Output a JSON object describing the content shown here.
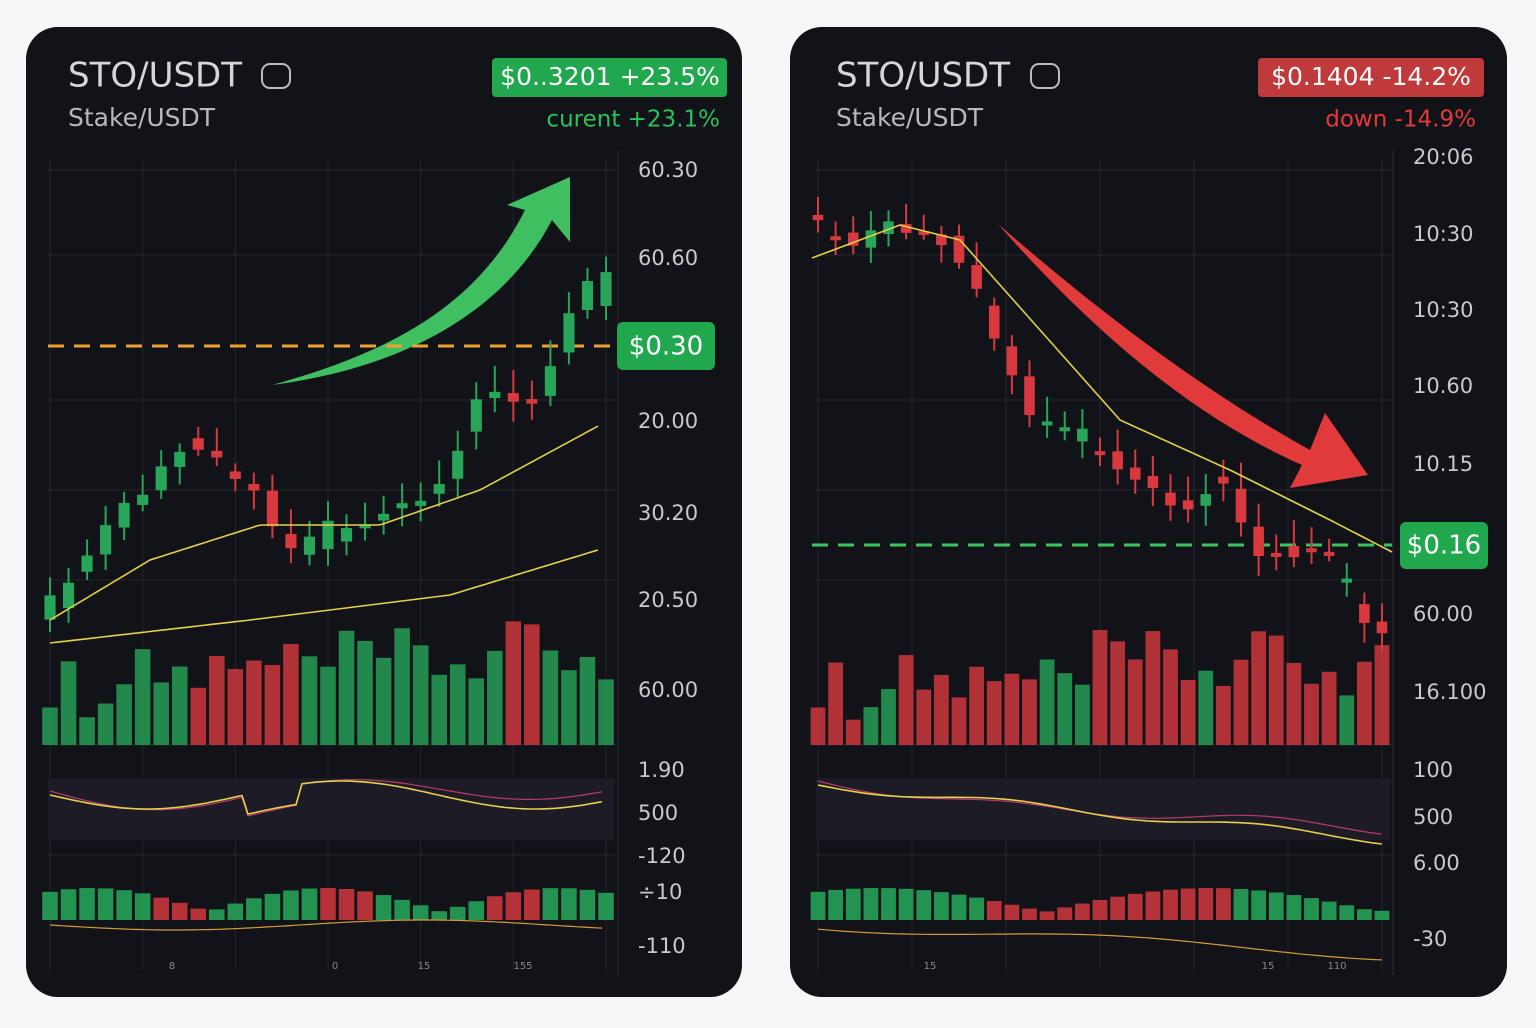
{
  "panels": [
    {
      "pair": "STO/USDT",
      "name": "Stake/USDT",
      "price_badge": "$0..3201 +23.5%",
      "change": "curent +23.1%",
      "price_tag": "$0.30",
      "axis_labels": [
        "60.30",
        "60.60",
        "20.00",
        "30.20",
        "20.50",
        "60.00",
        "1.90",
        "500",
        "-120",
        "÷10",
        "-110"
      ],
      "time_labels": [
        "8",
        "0",
        "15",
        "155"
      ]
    },
    {
      "pair": "STO/USDT",
      "name": "Stake/USDT",
      "price_badge": "$0.1404 -14.2%",
      "change": "down -14.9%",
      "price_tag": "$0.16",
      "axis_labels": [
        "20:06",
        "10:30",
        "10:30",
        "10.60",
        "10.15",
        "60.00",
        "16.100",
        "100",
        "500",
        "6.00",
        "-30"
      ],
      "time_labels": [
        "15",
        "15",
        "110"
      ]
    }
  ]
}
